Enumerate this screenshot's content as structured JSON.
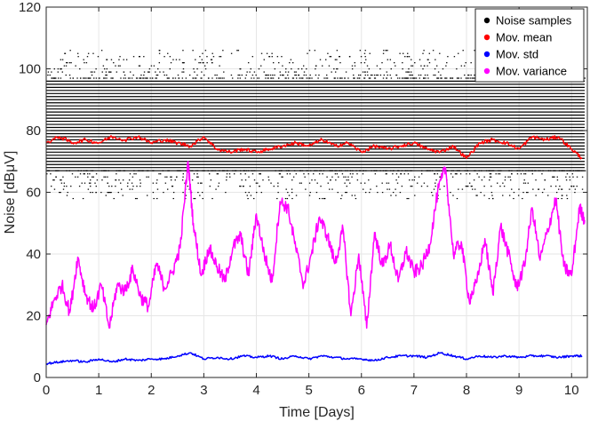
{
  "chart_data": {
    "type": "scatter",
    "xlabel": "Time [Days]",
    "ylabel": "Noise [dBμV]",
    "xlim": [
      0,
      10.3
    ],
    "ylim": [
      0,
      120
    ],
    "xticks": [
      0,
      1,
      2,
      3,
      4,
      5,
      6,
      7,
      8,
      9,
      10
    ],
    "yticks": [
      0,
      20,
      40,
      60,
      80,
      100,
      120
    ],
    "grid": true,
    "legend_position": "top-right",
    "noise_band": {
      "main_levels": {
        "from": 67,
        "to": 96,
        "step": 1
      },
      "sparse_upper": {
        "from": 97,
        "to": 106
      },
      "sparse_lower": {
        "from": 58,
        "to": 67
      }
    },
    "series": [
      {
        "name": "Noise samples",
        "color": "#000000",
        "kind": "points"
      },
      {
        "name": "Mov. mean",
        "color": "#ff0000",
        "kind": "line",
        "x": [
          0,
          0.25,
          0.5,
          0.75,
          1.0,
          1.25,
          1.5,
          1.75,
          2.0,
          2.25,
          2.5,
          2.75,
          3.0,
          3.25,
          3.5,
          3.75,
          4.0,
          4.25,
          4.5,
          4.75,
          5.0,
          5.25,
          5.5,
          5.75,
          6.0,
          6.25,
          6.5,
          6.75,
          7.0,
          7.25,
          7.5,
          7.75,
          8.0,
          8.25,
          8.5,
          8.75,
          9.0,
          9.25,
          9.5,
          9.75,
          10.0,
          10.2
        ],
        "y": [
          76,
          78,
          76,
          77,
          76,
          78,
          77,
          78,
          76,
          77,
          76,
          75,
          78,
          74,
          73,
          74,
          73,
          74,
          75,
          76,
          75,
          77,
          75,
          76,
          73,
          75,
          74,
          75,
          76,
          74,
          73,
          75,
          71,
          76,
          77,
          76,
          74,
          78,
          77,
          78,
          74,
          71
        ]
      },
      {
        "name": "Mov. std",
        "color": "#0000ff",
        "kind": "line",
        "x": [
          0,
          0.25,
          0.5,
          0.75,
          1.0,
          1.25,
          1.5,
          1.75,
          2.0,
          2.25,
          2.5,
          2.75,
          3.0,
          3.25,
          3.5,
          3.75,
          4.0,
          4.25,
          4.5,
          4.75,
          5.0,
          5.25,
          5.5,
          5.75,
          6.0,
          6.25,
          6.5,
          6.75,
          7.0,
          7.25,
          7.5,
          7.75,
          8.0,
          8.25,
          8.5,
          8.75,
          9.0,
          9.25,
          9.5,
          9.75,
          10.0,
          10.2
        ],
        "y": [
          4.5,
          5,
          5.5,
          5,
          6,
          5,
          6,
          5.5,
          6,
          6,
          7,
          8,
          6,
          6.5,
          6,
          7,
          6.5,
          7,
          6,
          7,
          6,
          7,
          6.5,
          6,
          6,
          5.5,
          6.5,
          7,
          7,
          6.5,
          8,
          7,
          6,
          7,
          6.5,
          7,
          6.5,
          7,
          7,
          6.5,
          7,
          7
        ]
      },
      {
        "name": "Mov. variance",
        "color": "#ff00ff",
        "kind": "line",
        "x": [
          0,
          0.15,
          0.3,
          0.45,
          0.6,
          0.75,
          0.9,
          1.05,
          1.2,
          1.35,
          1.5,
          1.65,
          1.8,
          1.95,
          2.1,
          2.25,
          2.4,
          2.55,
          2.7,
          2.8,
          2.95,
          3.1,
          3.25,
          3.4,
          3.55,
          3.7,
          3.85,
          4.0,
          4.15,
          4.3,
          4.45,
          4.6,
          4.75,
          4.9,
          5.05,
          5.2,
          5.35,
          5.5,
          5.65,
          5.8,
          5.95,
          6.1,
          6.25,
          6.4,
          6.55,
          6.7,
          6.85,
          7.0,
          7.15,
          7.3,
          7.45,
          7.6,
          7.75,
          7.9,
          8.05,
          8.2,
          8.35,
          8.5,
          8.65,
          8.8,
          8.95,
          9.1,
          9.25,
          9.4,
          9.55,
          9.7,
          9.85,
          10.0,
          10.15,
          10.25
        ],
        "y": [
          17,
          25,
          30,
          21,
          39,
          27,
          22,
          30,
          16,
          30,
          28,
          35,
          26,
          23,
          37,
          29,
          34,
          42,
          70,
          50,
          33,
          42,
          36,
          31,
          42,
          46,
          33,
          53,
          40,
          31,
          57,
          55,
          42,
          30,
          40,
          52,
          46,
          37,
          48,
          20,
          40,
          16,
          47,
          36,
          43,
          31,
          41,
          34,
          36,
          43,
          60,
          68,
          40,
          44,
          25,
          31,
          45,
          27,
          49,
          40,
          29,
          36,
          55,
          38,
          48,
          58,
          36,
          33,
          55,
          51
        ]
      }
    ]
  }
}
